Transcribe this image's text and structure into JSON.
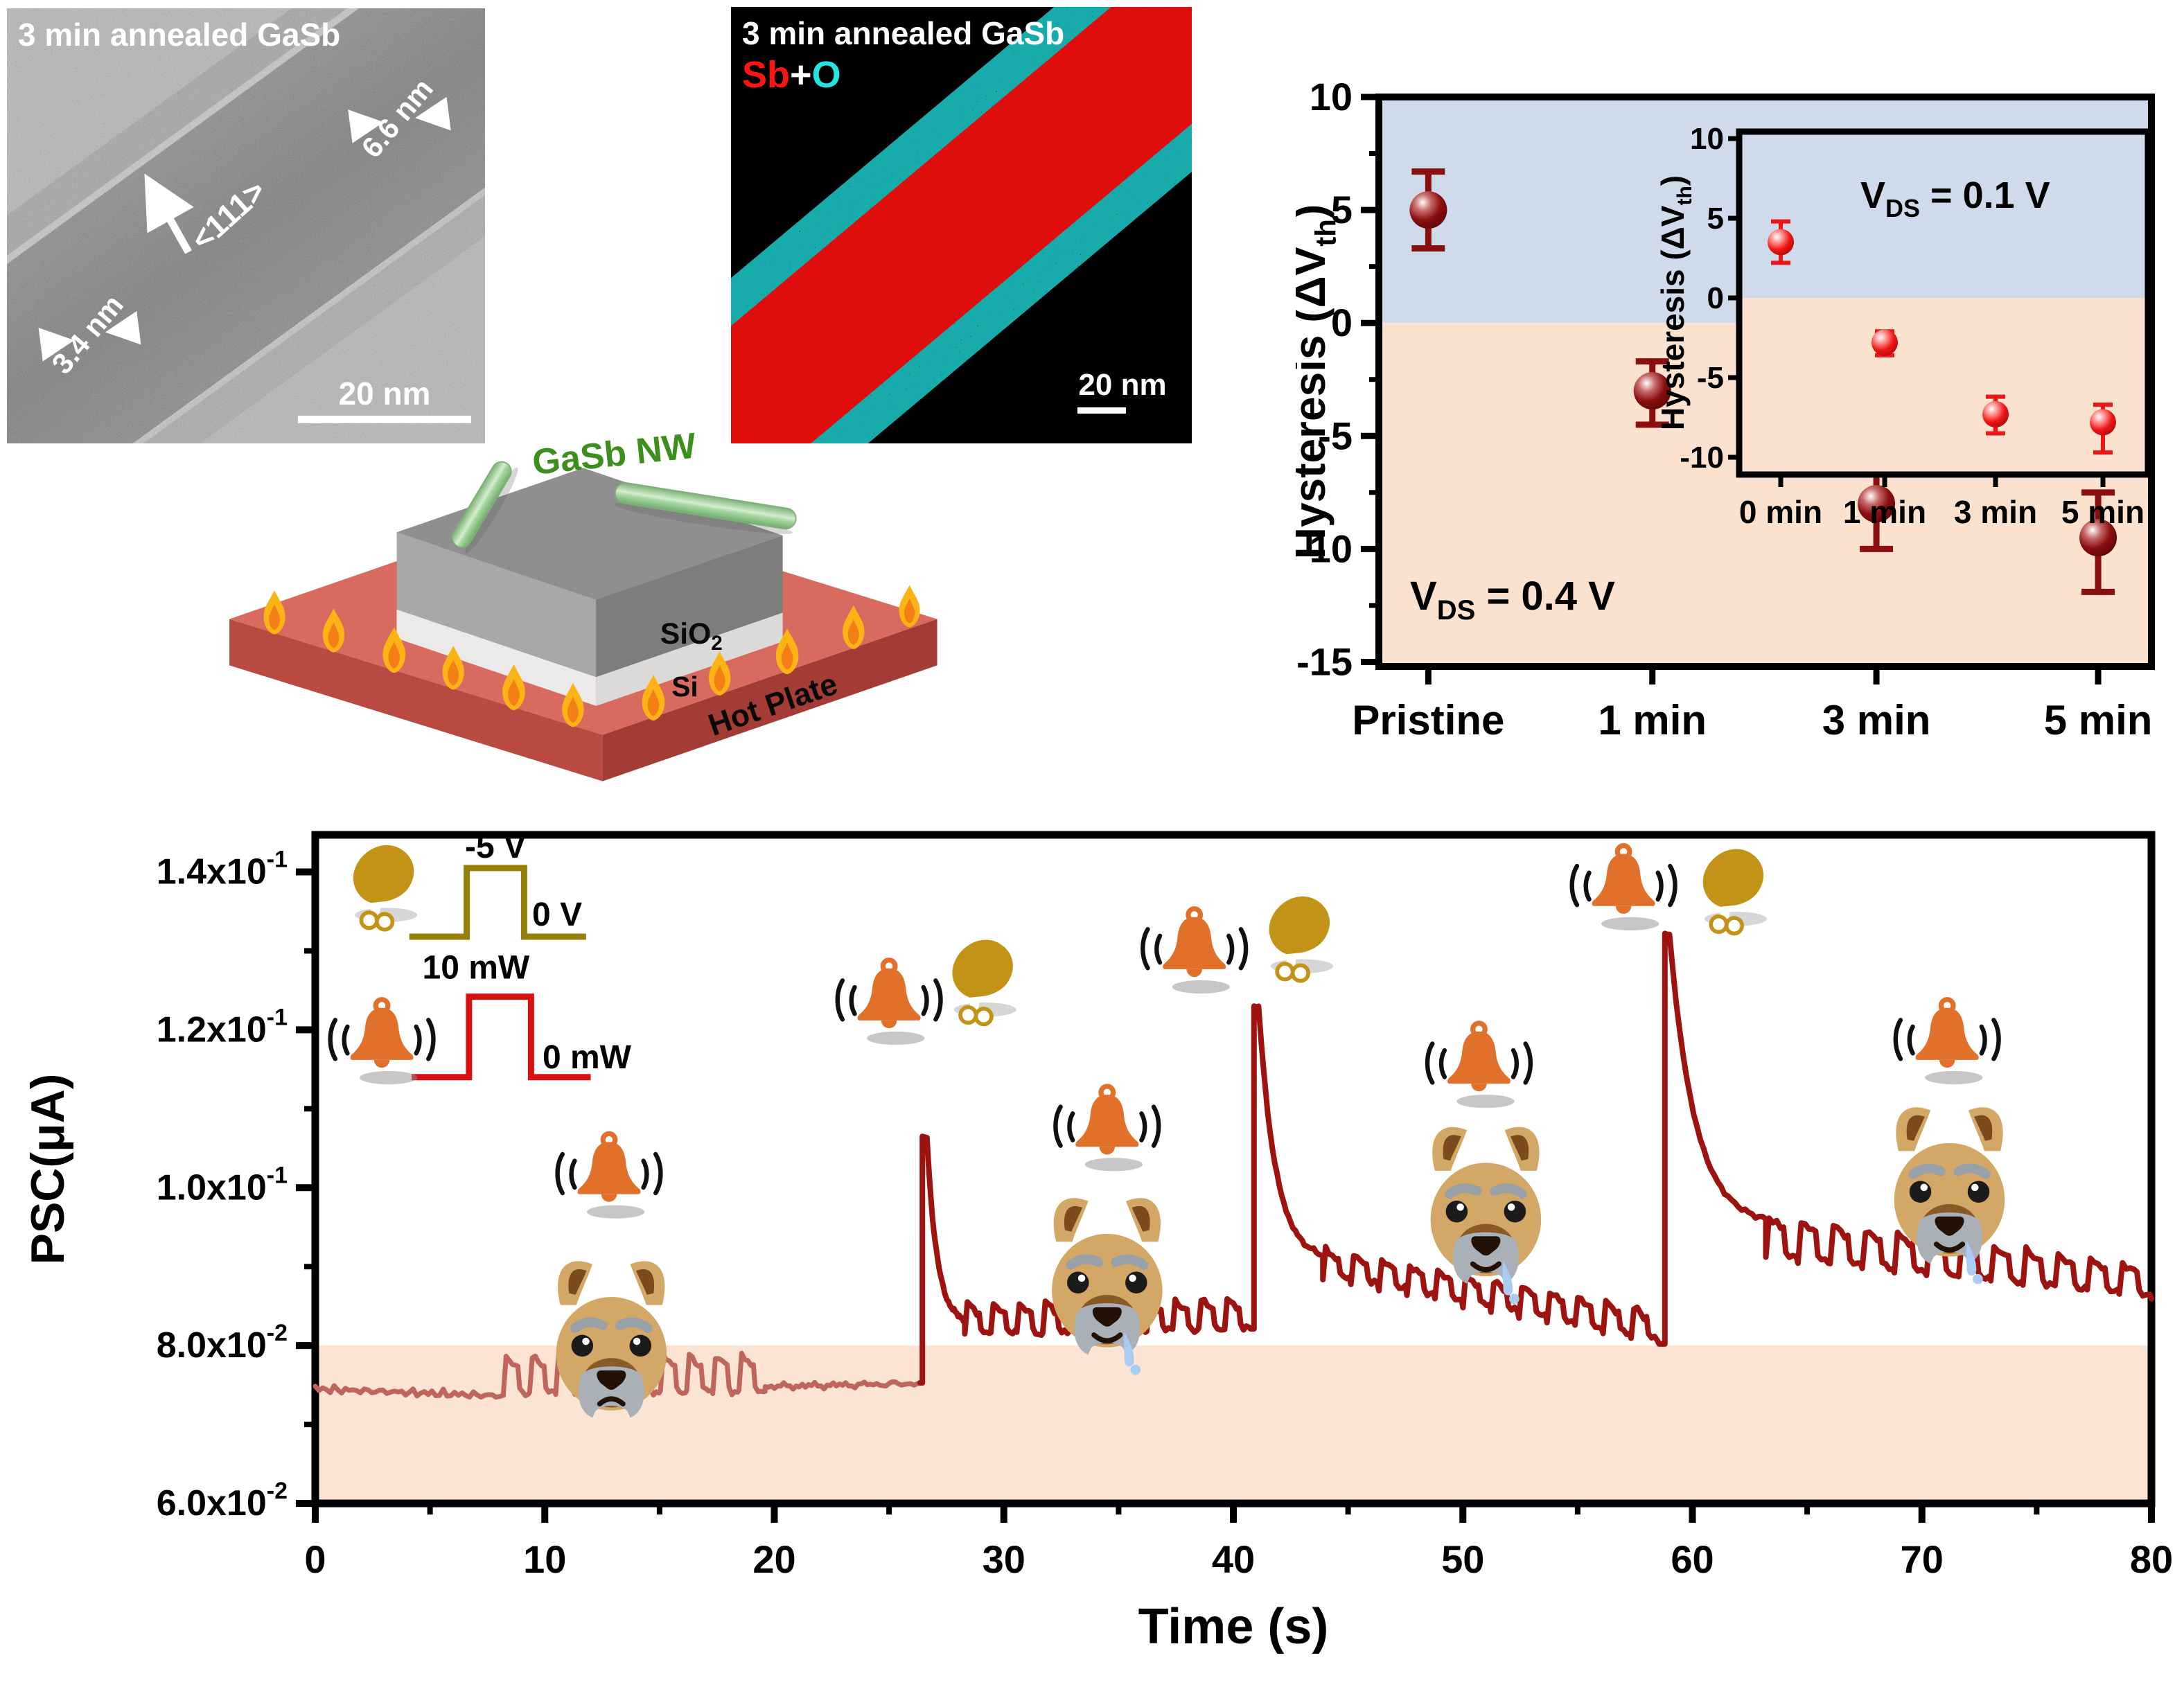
{
  "tem_panel": {
    "title": "3 min annealed GaSb",
    "measure_outer": "6.6 nm",
    "direction": "<111>",
    "measure_inner": "3.4 nm",
    "scalebar": "20 nm"
  },
  "eds_panel": {
    "title": "3 min annealed GaSb",
    "el1": "Sb",
    "plus": "+",
    "el2": "O",
    "el1_color": "#ff1414",
    "el2_color": "#24e3e3",
    "scalebar": "20 nm"
  },
  "schematic": {
    "nw_label": "GaSb NW",
    "sio2_pre": "SiO",
    "sio2_sub": "2",
    "si_label": "Si",
    "base_label": "Hot Plate",
    "nw_color": "#8fce8a",
    "plate_color": "#d96a5f",
    "flame_color": "#fcb315"
  },
  "chart_data": [
    {
      "id": "hysteresis_vs_annealing",
      "type": "scatter",
      "ylabel": {
        "pre": "Hysteresis (ΔV",
        "sub": "th",
        "post": ")"
      },
      "annotation": {
        "pre": "V",
        "sub": "DS",
        "post": " = 0.4 V"
      },
      "ylim": [
        -15.2,
        10
      ],
      "yticks": [
        10,
        5,
        0,
        -5,
        -10,
        -15
      ],
      "yticks_minor": [
        7.5,
        2.5,
        -2.5,
        -7.5,
        -12.5
      ],
      "categories": [
        "Pristine",
        "1 min",
        "3 min",
        "5 min"
      ],
      "values": [
        5.0,
        -3.0,
        -8.0,
        -9.5
      ],
      "err_up": [
        1.7,
        1.3,
        1.7,
        2.0
      ],
      "err_dn": [
        1.7,
        1.5,
        2.0,
        2.4
      ],
      "marker_color": "#8a0f0f",
      "region_colors": {
        "positive": "#cfdaea",
        "negative": "#fae2cf"
      },
      "legend_position": "none",
      "inset": {
        "ylabel": {
          "pre": "Hysteresis (ΔV",
          "sub": "th",
          "post": ")"
        },
        "annotation": {
          "pre": "V",
          "sub": "DS",
          "post": " = 0.1 V"
        },
        "ylim": [
          -11.1,
          10
        ],
        "yticks": [
          10,
          5,
          0,
          -5,
          -10
        ],
        "categories": [
          "0 min",
          "1 min",
          "3 min",
          "5 min"
        ],
        "values": [
          3.5,
          -2.8,
          -7.3,
          -7.8
        ],
        "err_up": [
          1.3,
          0.7,
          1.1,
          1.1
        ],
        "err_dn": [
          1.3,
          0.8,
          1.2,
          1.9
        ],
        "marker_color": "#ee1515"
      }
    },
    {
      "id": "psc_time",
      "type": "line",
      "ylabel": "PSC(μA)",
      "xlabel": "Time (s)",
      "xlim": [
        0,
        80
      ],
      "xticks": [
        0,
        10,
        20,
        30,
        40,
        50,
        60,
        70,
        80
      ],
      "xticks_minor": [
        5,
        15,
        25,
        35,
        45,
        55,
        65,
        75
      ],
      "ylim": [
        0.06,
        0.1447
      ],
      "yticks": [
        {
          "mant": "1.4x10",
          "exp": "-1",
          "v": 0.14
        },
        {
          "mant": "1.2x10",
          "exp": "-1",
          "v": 0.12
        },
        {
          "mant": "1.0x10",
          "exp": "-1",
          "v": 0.1
        },
        {
          "mant": "8.0x10",
          "exp": "-2",
          "v": 0.08
        },
        {
          "mant": "6.0x10",
          "exp": "-2",
          "v": 0.06
        }
      ],
      "yticks_minor": [
        0.07,
        0.09,
        0.11,
        0.13
      ],
      "band": {
        "top": 0.08,
        "color": "#fbe4d3"
      },
      "trace_colors": {
        "pre": "#c0655c",
        "post": "#9c1310"
      },
      "segments": [
        {
          "kind": "line",
          "t0": 0,
          "t1": 8.2,
          "v0": 0.0745,
          "v1": 0.0736,
          "noise": 0.0005,
          "color": "pre"
        },
        {
          "kind": "osc",
          "t0": 8.2,
          "t1": 19.6,
          "lo0": 0.074,
          "hi0": 0.0786,
          "lo1": 0.0742,
          "hi1": 0.0788,
          "cycles": 10,
          "noise": 0.0004,
          "color": "pre"
        },
        {
          "kind": "line",
          "t0": 19.6,
          "t1": 26.35,
          "v0": 0.0748,
          "v1": 0.0752,
          "noise": 0.0004,
          "color": "pre"
        },
        {
          "kind": "spike",
          "t": 26.45,
          "peak": 0.1065,
          "settle": 0.0828,
          "t_end": 28.3,
          "color": "post"
        },
        {
          "kind": "osc",
          "t0": 28.3,
          "t1": 40.75,
          "lo0": 0.0815,
          "hi0": 0.0853,
          "lo1": 0.0822,
          "hi1": 0.086,
          "cycles": 11,
          "noise": 0.0004,
          "color": "post"
        },
        {
          "kind": "spike",
          "t": 40.9,
          "peak": 0.123,
          "settle": 0.0908,
          "t_end": 43.9,
          "color": "post"
        },
        {
          "kind": "osc",
          "t0": 43.9,
          "t1": 58.55,
          "lo0": 0.0886,
          "hi0": 0.0922,
          "lo1": 0.0802,
          "hi1": 0.0842,
          "cycles": 12,
          "noise": 0.0004,
          "color": "post"
        },
        {
          "kind": "spike",
          "t": 58.8,
          "peak": 0.1322,
          "settle": 0.0952,
          "t_end": 63.2,
          "color": "post"
        },
        {
          "kind": "osc",
          "t0": 63.2,
          "t1": 80,
          "lo0": 0.0912,
          "hi0": 0.0962,
          "lo1": 0.086,
          "hi1": 0.09,
          "cycles": 12,
          "noise": 0.0004,
          "color": "post"
        }
      ],
      "pulses": [
        {
          "name": "gate-pulse",
          "color": "#97800a",
          "points": [
            [
              4.1,
              0.1318
            ],
            [
              6.6,
              0.1318
            ],
            [
              6.6,
              0.1405
            ],
            [
              9.1,
              0.1405
            ],
            [
              9.1,
              0.1318
            ],
            [
              11.8,
              0.1318
            ]
          ],
          "labels": [
            {
              "text": "-5 V",
              "t": 7.85,
              "v": 0.1418,
              "anchor": "middle"
            },
            {
              "text": "0 V",
              "t": 9.45,
              "v": 0.1332,
              "anchor": "start"
            }
          ]
        },
        {
          "name": "light-pulse",
          "color": "#d81111",
          "points": [
            [
              4.2,
              0.114
            ],
            [
              6.7,
              0.114
            ],
            [
              6.7,
              0.1242
            ],
            [
              9.4,
              0.1242
            ],
            [
              9.4,
              0.114
            ],
            [
              12.0,
              0.114
            ]
          ],
          "labels": [
            {
              "text": "10 mW",
              "t": 7.0,
              "v": 0.1265,
              "anchor": "middle"
            },
            {
              "text": "0 mW",
              "t": 9.9,
              "v": 0.1151,
              "anchor": "start"
            }
          ]
        }
      ],
      "icons": [
        {
          "icon": "drumstick",
          "t": 2.8,
          "v": 0.1385
        },
        {
          "icon": "bell",
          "t": 2.9,
          "v": 0.1185
        },
        {
          "icon": "bell",
          "t": 12.8,
          "v": 0.1015
        },
        {
          "icon": "dog-sad",
          "t": 12.9,
          "v": 0.0815
        },
        {
          "icon": "bell",
          "t": 25.0,
          "v": 0.1235
        },
        {
          "icon": "drumstick",
          "t": 28.9,
          "v": 0.1265
        },
        {
          "icon": "bell",
          "t": 34.5,
          "v": 0.1075
        },
        {
          "icon": "dog-drool",
          "t": 34.5,
          "v": 0.0895
        },
        {
          "icon": "bell",
          "t": 38.3,
          "v": 0.13
        },
        {
          "icon": "drumstick",
          "t": 42.7,
          "v": 0.132
        },
        {
          "icon": "bell",
          "t": 50.7,
          "v": 0.1155
        },
        {
          "icon": "dog-drool",
          "t": 51.0,
          "v": 0.0985
        },
        {
          "icon": "bell",
          "t": 57.0,
          "v": 0.138
        },
        {
          "icon": "drumstick",
          "t": 61.6,
          "v": 0.138
        },
        {
          "icon": "bell",
          "t": 71.1,
          "v": 0.1185
        },
        {
          "icon": "dog-drool",
          "t": 71.2,
          "v": 0.101
        }
      ]
    }
  ]
}
